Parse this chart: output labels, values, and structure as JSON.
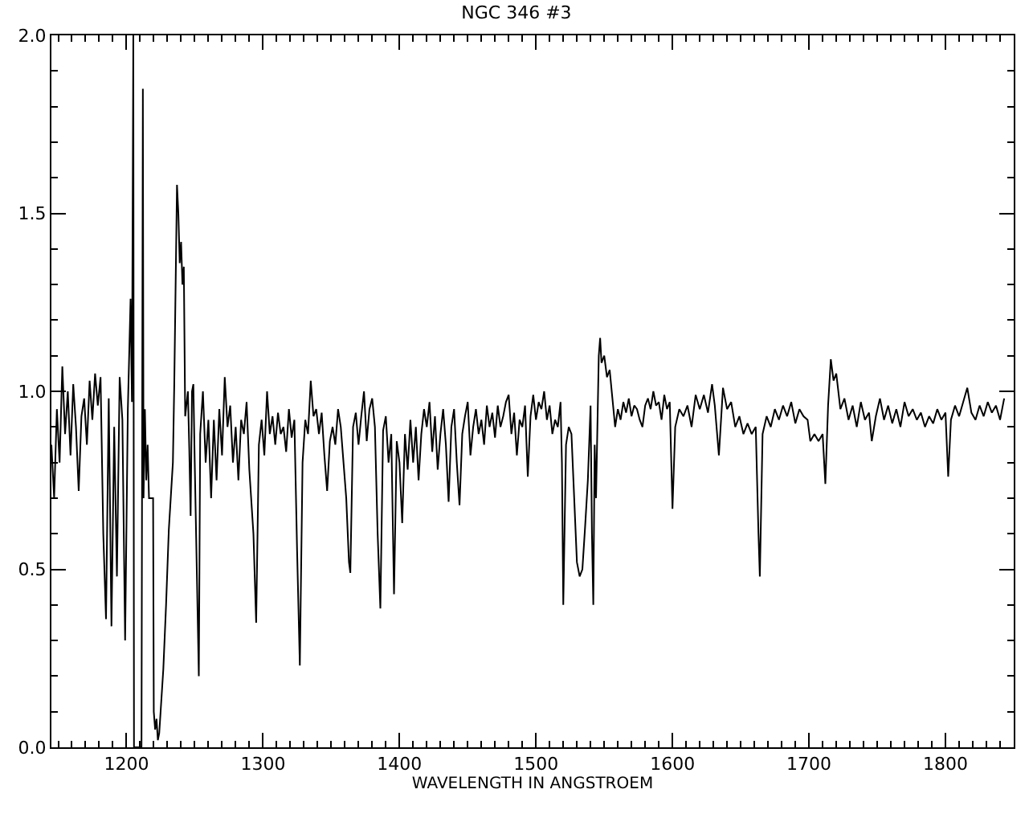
{
  "chart_data": {
    "type": "line",
    "title": "NGC 346 #3",
    "xlabel": "WAVELENGTH IN ANGSTROEM",
    "xlim": [
      1145,
      1850
    ],
    "xticks": [
      1200,
      1300,
      1400,
      1500,
      1600,
      1700,
      1800
    ],
    "ylim": [
      0,
      2
    ],
    "yticks": [
      {
        "value": 0,
        "label": "0.0"
      },
      {
        "value": 0.5,
        "label": "0.5"
      },
      {
        "value": 1,
        "label": "1.0"
      },
      {
        "value": 1.5,
        "label": "1.5"
      },
      {
        "value": 2,
        "label": "2.0"
      }
    ],
    "marker": "none",
    "line_style": "solid",
    "series": [
      {
        "color": "#000000",
        "x": [
          1145,
          1147,
          1149,
          1151,
          1153,
          1155,
          1157,
          1159,
          1161,
          1163,
          1165,
          1167,
          1169,
          1171,
          1173,
          1175,
          1177,
          1179,
          1181,
          1183,
          1185,
          1187,
          1189,
          1191,
          1193,
          1195,
          1197,
          1199,
          1201,
          1203,
          1204,
          1205,
          1205.5,
          1211,
          1212,
          1212.5,
          1213.5,
          1214.5,
          1215.5,
          1216.5,
          1219.5,
          1220,
          1221,
          1222,
          1223,
          1224,
          1225,
          1227,
          1229,
          1231,
          1234,
          1235,
          1237,
          1238,
          1239,
          1240,
          1241,
          1242,
          1243,
          1245,
          1246,
          1247,
          1248,
          1249,
          1250,
          1253,
          1254,
          1256,
          1258,
          1260,
          1262,
          1264,
          1266,
          1268,
          1270,
          1272,
          1274,
          1276,
          1278,
          1280,
          1282,
          1284,
          1286,
          1288,
          1290,
          1293,
          1295,
          1297,
          1299,
          1301,
          1303,
          1305,
          1307,
          1309,
          1311,
          1313,
          1315,
          1317,
          1319,
          1321,
          1323,
          1325,
          1327,
          1329,
          1331,
          1333,
          1335,
          1337,
          1339,
          1341,
          1343,
          1345,
          1347,
          1349,
          1351,
          1353,
          1355,
          1357,
          1359,
          1361,
          1363,
          1364,
          1366,
          1368,
          1370,
          1372,
          1374,
          1376,
          1378,
          1380,
          1382,
          1384,
          1386,
          1388,
          1390,
          1392,
          1394,
          1396,
          1398,
          1400,
          1402,
          1404,
          1406,
          1408,
          1410,
          1412,
          1414,
          1416,
          1418,
          1420,
          1422,
          1424,
          1426,
          1428,
          1430,
          1432,
          1434,
          1436,
          1438,
          1440,
          1442,
          1444,
          1446,
          1448,
          1450,
          1452,
          1454,
          1456,
          1458,
          1460,
          1462,
          1464,
          1466,
          1468,
          1470,
          1472,
          1474,
          1476,
          1478,
          1480,
          1482,
          1484,
          1486,
          1488,
          1490,
          1492,
          1494,
          1496,
          1498,
          1500,
          1502,
          1504,
          1506,
          1508,
          1510,
          1512,
          1514,
          1516,
          1518,
          1519,
          1520,
          1522,
          1524,
          1526,
          1528,
          1530,
          1532,
          1534,
          1536,
          1538,
          1540,
          1541,
          1542,
          1543,
          1544,
          1546,
          1547,
          1548,
          1550,
          1552,
          1554,
          1556,
          1558,
          1560,
          1562,
          1564,
          1566,
          1568,
          1570,
          1572,
          1574,
          1576,
          1578,
          1580,
          1582,
          1584,
          1586,
          1588,
          1590,
          1592,
          1594,
          1596,
          1598,
          1600,
          1602,
          1605,
          1608,
          1611,
          1614,
          1617,
          1620,
          1623,
          1626,
          1629,
          1631,
          1634,
          1637,
          1640,
          1643,
          1646,
          1649,
          1652,
          1655,
          1658,
          1661,
          1663,
          1664,
          1666,
          1669,
          1672,
          1675,
          1678,
          1681,
          1684,
          1687,
          1690,
          1693,
          1696,
          1699,
          1701,
          1704,
          1707,
          1710,
          1712,
          1714,
          1716,
          1718,
          1720,
          1723,
          1726,
          1729,
          1732,
          1735,
          1738,
          1741,
          1744,
          1746,
          1749,
          1752,
          1755,
          1758,
          1761,
          1764,
          1767,
          1770,
          1773,
          1776,
          1779,
          1782,
          1785,
          1788,
          1791,
          1794,
          1797,
          1800,
          1802,
          1804,
          1807,
          1810,
          1813,
          1816,
          1819,
          1822,
          1825,
          1828,
          1831,
          1834,
          1837,
          1840,
          1843
        ],
        "values": [
          0.85,
          0.7,
          0.95,
          0.8,
          1.07,
          0.88,
          1.0,
          0.82,
          1.02,
          0.9,
          0.72,
          0.93,
          0.98,
          0.85,
          1.03,
          0.92,
          1.05,
          0.96,
          1.04,
          0.6,
          0.36,
          0.98,
          0.34,
          0.9,
          0.48,
          1.04,
          0.92,
          0.3,
          0.95,
          1.26,
          0.97,
          2.0,
          0.0,
          0.0,
          1.85,
          0.7,
          0.95,
          0.75,
          0.85,
          0.7,
          0.7,
          0.1,
          0.05,
          0.08,
          0.02,
          0.04,
          0.1,
          0.22,
          0.4,
          0.61,
          0.8,
          1.02,
          1.58,
          1.5,
          1.36,
          1.42,
          1.3,
          1.35,
          0.93,
          1.0,
          0.84,
          0.65,
          1.0,
          1.02,
          0.8,
          0.2,
          0.88,
          1.0,
          0.8,
          0.92,
          0.7,
          0.92,
          0.75,
          0.95,
          0.82,
          1.04,
          0.9,
          0.96,
          0.8,
          0.9,
          0.75,
          0.92,
          0.88,
          0.97,
          0.78,
          0.6,
          0.35,
          0.85,
          0.92,
          0.82,
          1.0,
          0.88,
          0.93,
          0.85,
          0.94,
          0.88,
          0.9,
          0.83,
          0.95,
          0.87,
          0.92,
          0.55,
          0.23,
          0.8,
          0.92,
          0.88,
          1.03,
          0.93,
          0.95,
          0.88,
          0.94,
          0.82,
          0.72,
          0.86,
          0.9,
          0.85,
          0.95,
          0.9,
          0.8,
          0.7,
          0.52,
          0.49,
          0.9,
          0.94,
          0.85,
          0.93,
          1.0,
          0.86,
          0.95,
          0.98,
          0.9,
          0.6,
          0.39,
          0.89,
          0.93,
          0.8,
          0.88,
          0.43,
          0.86,
          0.8,
          0.63,
          0.88,
          0.78,
          0.92,
          0.8,
          0.9,
          0.75,
          0.88,
          0.95,
          0.9,
          0.97,
          0.83,
          0.93,
          0.78,
          0.88,
          0.95,
          0.85,
          0.69,
          0.9,
          0.95,
          0.8,
          0.68,
          0.88,
          0.93,
          0.97,
          0.82,
          0.9,
          0.95,
          0.88,
          0.92,
          0.85,
          0.96,
          0.9,
          0.94,
          0.87,
          0.96,
          0.9,
          0.93,
          0.97,
          0.99,
          0.88,
          0.94,
          0.82,
          0.92,
          0.9,
          0.96,
          0.76,
          0.93,
          0.99,
          0.92,
          0.97,
          0.95,
          1.0,
          0.92,
          0.96,
          0.88,
          0.92,
          0.9,
          0.97,
          0.8,
          0.4,
          0.85,
          0.9,
          0.88,
          0.7,
          0.52,
          0.48,
          0.5,
          0.62,
          0.75,
          0.96,
          0.6,
          0.4,
          0.85,
          0.7,
          1.1,
          1.15,
          1.08,
          1.1,
          1.04,
          1.06,
          0.98,
          0.9,
          0.95,
          0.92,
          0.97,
          0.94,
          0.98,
          0.93,
          0.96,
          0.95,
          0.92,
          0.9,
          0.96,
          0.98,
          0.95,
          1.0,
          0.96,
          0.97,
          0.92,
          0.99,
          0.95,
          0.97,
          0.67,
          0.9,
          0.95,
          0.93,
          0.96,
          0.9,
          0.99,
          0.95,
          0.99,
          0.94,
          1.02,
          0.96,
          0.82,
          1.01,
          0.95,
          0.97,
          0.9,
          0.93,
          0.88,
          0.91,
          0.88,
          0.9,
          0.6,
          0.48,
          0.88,
          0.93,
          0.9,
          0.95,
          0.92,
          0.96,
          0.93,
          0.97,
          0.91,
          0.95,
          0.93,
          0.92,
          0.86,
          0.88,
          0.86,
          0.88,
          0.74,
          0.96,
          1.09,
          1.03,
          1.05,
          0.95,
          0.98,
          0.92,
          0.96,
          0.9,
          0.97,
          0.92,
          0.94,
          0.86,
          0.93,
          0.98,
          0.92,
          0.96,
          0.91,
          0.95,
          0.9,
          0.97,
          0.93,
          0.95,
          0.92,
          0.94,
          0.9,
          0.93,
          0.91,
          0.95,
          0.92,
          0.94,
          0.76,
          0.92,
          0.96,
          0.93,
          0.97,
          1.01,
          0.94,
          0.92,
          0.96,
          0.93,
          0.97,
          0.94,
          0.96,
          0.92,
          0.98
        ]
      }
    ]
  }
}
